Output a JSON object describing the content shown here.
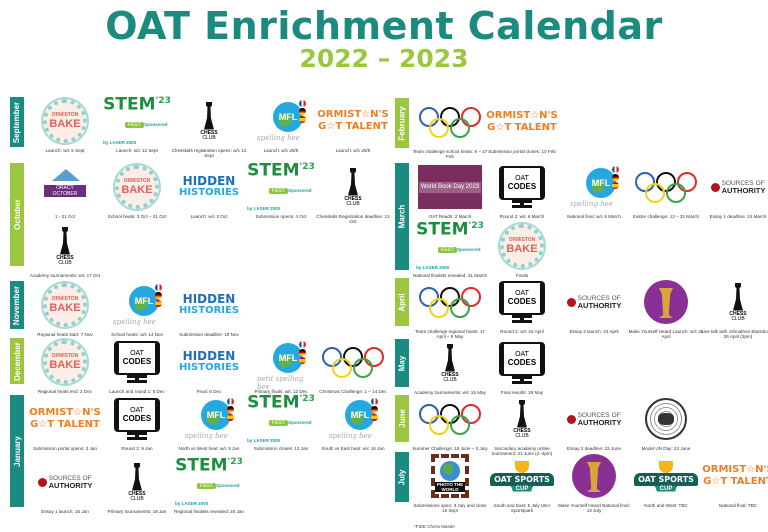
{
  "header": {
    "title": "OAT Enrichment Calendar",
    "subtitle": "2022 – 2023"
  },
  "colors": {
    "teal": "#1b8a7f",
    "green": "#9bc63f"
  },
  "logos": {
    "bake": {
      "a": "The Great",
      "b": "ORMISTON",
      "c": "BAKE"
    },
    "stem": {
      "a": "STEM",
      "year": "'23",
      "fest": "FEST",
      "sponsor": "Sponsored by LASER 2000"
    },
    "chess": {
      "a": "CHESS",
      "b": "CLUB"
    },
    "mfl": {
      "a": "MFL",
      "b": "spelling bee"
    },
    "mfl_petit": {
      "a": "MFL",
      "b": "petit spelling bee"
    },
    "talent": {
      "a": "ORMIST☆N'S",
      "b": "G☆T TALENT"
    },
    "hidden": {
      "a": "HIDDEN",
      "b": "HISTORIES"
    },
    "codes": {
      "a": "OAT",
      "b": "CODES"
    },
    "sources": {
      "a": "SOURCES OF",
      "b": "AUTHORITY"
    },
    "oracy": {
      "a": "ORACY",
      "b": "OCTOBER"
    },
    "worldbook": {
      "a": "World Book Day 2023"
    },
    "photo": {
      "a": "PHOTO THE WORLD"
    },
    "sports": {
      "a": "OAT SPORTS",
      "b": "CUP"
    }
  },
  "months": [
    {
      "name": "September",
      "color": "teal",
      "items": [
        {
          "logo": "bake",
          "caption": "Launch:  w/c 5 Sept"
        },
        {
          "logo": "stem",
          "caption": "Launch: w/c 12 Sept"
        },
        {
          "logo": "chess",
          "caption": "Chesskids registration opens: w/c 12 Sept"
        },
        {
          "logo": "mfl",
          "caption": "Launch: w/c 26/9"
        },
        {
          "logo": "talent",
          "caption": "Launch: w/c 26/9"
        }
      ]
    },
    {
      "name": "October",
      "color": "green",
      "items": [
        {
          "logo": "oracy",
          "caption": "1 - 31 Oct"
        },
        {
          "logo": "bake",
          "caption": "School heats: 3 Oct – 21 Oct"
        },
        {
          "logo": "hidden",
          "caption": "Launch: w/c 3 Oct"
        },
        {
          "logo": "stem",
          "caption": "Submission opens: 4 Oct"
        },
        {
          "logo": "chess",
          "caption": "Chesskids Registration deadline: 12 Oct"
        },
        {
          "logo": "chess",
          "caption": "Academy tournaments: w/c 17 Oct"
        }
      ]
    },
    {
      "name": "November",
      "color": "teal",
      "items": [
        {
          "logo": "bake",
          "caption": "Regional heats start: 7 Nov"
        },
        {
          "logo": "mfl",
          "caption": "School heats: w/c 14 Nov"
        },
        {
          "logo": "hidden",
          "caption": "Submission deadline: 18 Nov"
        }
      ]
    },
    {
      "name": "December",
      "color": "green",
      "items": [
        {
          "logo": "bake",
          "caption": "Regional heats end: 2 Dec"
        },
        {
          "logo": "codes",
          "caption": "Launch and round 1: 5 Dec"
        },
        {
          "logo": "hidden",
          "caption": "Final: 6 Dec"
        },
        {
          "logo": "mfl_petit",
          "caption": "Primary finals: w/c 12 Dec"
        },
        {
          "logo": "rings",
          "caption": "Christmas Challenge: 1 – 14 Dec"
        }
      ]
    },
    {
      "name": "January",
      "color": "teal",
      "items": [
        {
          "logo": "talent",
          "caption": "Submission portal opens: 3 Jan"
        },
        {
          "logo": "codes",
          "caption": "Round 2: 9 Jan"
        },
        {
          "logo": "mfl",
          "caption": "North vs West heat: w/c 9 Jan"
        },
        {
          "logo": "stem",
          "caption": "Submission closes: 13 Jan"
        },
        {
          "logo": "mfl",
          "caption": "South vs East heat: w/c 16 Jan"
        },
        {
          "logo": "sources",
          "caption": "Essay 1 launch: 16 Jan"
        },
        {
          "logo": "chess",
          "caption": "Primary tournaments: 18 Jan"
        },
        {
          "logo": "stem",
          "caption": "Regional finalists revealed: 20 Jan"
        }
      ]
    },
    {
      "name": "February",
      "color": "green",
      "items": [
        {
          "logo": "rings",
          "caption": "Team challenge school heats: 6 – 27 Feb"
        },
        {
          "logo": "talent",
          "caption": "Submission portal closes: 10 Feb"
        }
      ]
    },
    {
      "name": "March",
      "color": "teal",
      "items": [
        {
          "logo": "worldbook",
          "caption": "OAT Reads: 2 March"
        },
        {
          "logo": "codes",
          "caption": "Round 3: w/c 6 March"
        },
        {
          "logo": "mfl",
          "caption": "National final: w/c 6 March"
        },
        {
          "logo": "rings",
          "caption": "Easter challenge: 13 – 31 March"
        },
        {
          "logo": "sources",
          "caption": "Essay 1 deadline: 24 March"
        },
        {
          "logo": "stem",
          "caption": "National finalists revealed: 31 March"
        },
        {
          "logo": "bake",
          "caption": "Finals"
        }
      ]
    },
    {
      "name": "April",
      "color": "green",
      "items": [
        {
          "logo": "rings",
          "caption": "Team challenge regional heats: 17 April – 5 May"
        },
        {
          "logo": "codes",
          "caption": "Round 4: w/c 24 April"
        },
        {
          "logo": "sources",
          "caption": "Essay 2 launch: 24 April"
        },
        {
          "logo": "heard",
          "caption": "Make Yourself Heard Launch: w/c 24 April"
        },
        {
          "logo": "chess",
          "caption": "Live talk with Johnathon Blackburn*: 26 April (2pm)"
        }
      ]
    },
    {
      "name": "May",
      "color": "teal",
      "items": [
        {
          "logo": "chess",
          "caption": "Academy tournaments: w/c 15 May"
        },
        {
          "logo": "codes",
          "caption": "Final results: 26 May"
        }
      ]
    },
    {
      "name": "June",
      "color": "green",
      "items": [
        {
          "logo": "rings",
          "caption": "Summer Challenge: 19 June – 3 July"
        },
        {
          "logo": "chess",
          "caption": "Secondary academy online tournament: 21 June (2–4pm)"
        },
        {
          "logo": "sources",
          "caption": "Essay 2 deadline: 23 June"
        },
        {
          "logo": "un",
          "caption": "Model UN Day: 22 June"
        }
      ]
    },
    {
      "name": "July",
      "color": "teal",
      "items": [
        {
          "logo": "photo",
          "caption": "Submissions open: 3 July and close 15 Sept"
        },
        {
          "logo": "sports",
          "caption": "South and East: 5 July UEA Sportspark"
        },
        {
          "logo": "heard",
          "caption": "Make Yourself Heard National final: 13 July"
        },
        {
          "logo": "sports",
          "caption": "North and West: TBC"
        },
        {
          "logo": "talent",
          "caption": "National final: TBC"
        }
      ]
    }
  ],
  "footnote": "*FIDE Chess Master"
}
